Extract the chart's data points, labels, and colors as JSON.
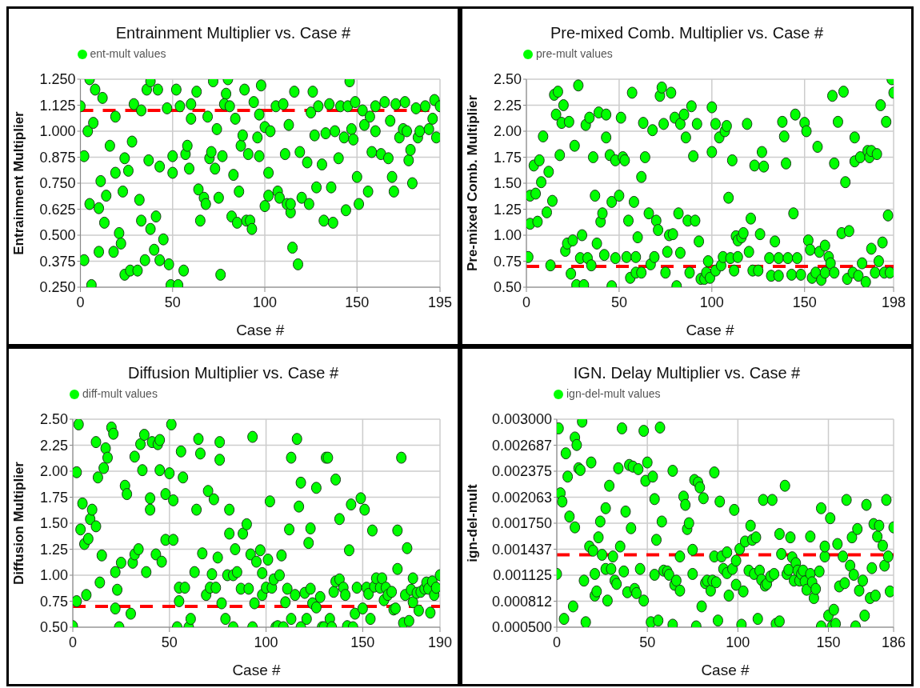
{
  "chart_data": [
    {
      "type": "scatter",
      "title": "Entrainment Multiplier vs. Case #",
      "xlabel": "Case #",
      "ylabel": "Entrainment  Multiplier",
      "xlim": [
        0,
        195
      ],
      "xticks": [
        0,
        50,
        100,
        150,
        195
      ],
      "ylim": [
        0.25,
        1.25
      ],
      "yticks": [
        {
          "value": 0.25,
          "label": "0.250"
        },
        0.375,
        {
          "value": 0.5,
          "label": "0.500"
        },
        0.625,
        {
          "value": 0.75,
          "label": "0.750"
        },
        0.875,
        {
          "value": 1,
          "label": "1.000"
        },
        1.125,
        {
          "value": 1.25,
          "label": "1.250"
        }
      ],
      "grid": true,
      "legend": "top left",
      "marker": "circle",
      "ref_lines": [
        {
          "axis": "y",
          "value": 1.1,
          "color": "#ff0000",
          "line_style": "dashed"
        }
      ],
      "x": [
        0,
        5,
        8,
        12,
        4,
        7,
        2,
        16,
        19,
        5,
        11,
        14,
        10,
        2,
        6,
        10,
        13,
        19,
        23,
        24,
        26,
        21,
        22,
        18,
        24,
        27,
        31,
        28,
        29,
        33,
        32,
        33,
        35,
        36,
        38,
        42,
        37,
        38,
        40,
        41,
        43,
        43,
        45,
        47,
        48,
        49,
        53,
        50,
        50,
        52,
        54,
        56,
        57,
        58,
        59,
        60,
        60,
        63,
        64,
        67,
        68,
        65,
        69,
        70,
        71,
        73,
        72,
        74,
        76,
        75,
        77,
        79,
        80,
        78,
        81,
        84,
        83,
        82,
        85,
        86,
        87,
        88,
        89,
        90,
        92,
        93,
        91,
        94,
        96,
        97,
        98,
        97,
        100,
        100,
        102,
        102,
        103,
        106,
        107,
        108,
        110,
        111,
        112,
        113,
        114,
        114,
        115,
        116,
        118,
        119,
        120,
        123,
        124,
        125,
        126,
        127,
        128,
        129,
        131,
        132,
        133,
        135,
        136,
        137,
        138,
        140,
        141,
        143,
        144,
        146,
        145,
        147,
        148,
        149,
        150,
        151,
        153,
        154,
        156,
        157,
        158,
        160,
        160,
        163,
        165,
        167,
        168,
        169,
        170,
        171,
        173,
        175,
        176,
        177,
        178,
        179,
        180,
        182,
        183,
        184,
        187,
        189,
        191,
        192,
        193,
        195
      ],
      "series": [
        {
          "name": "ent-mult values",
          "color": "#00ff00",
          "values": [
            1.12,
            1.25,
            1.2,
            1.16,
            1.0,
            1.04,
            0.88,
            0.93,
            1.07,
            0.65,
            0.76,
            0.69,
            0.63,
            0.38,
            0.26,
            0.42,
            0.56,
            0.8,
            0.71,
            0.87,
            0.81,
            0.51,
            0.46,
            0.42,
            0.31,
            0.33,
            0.33,
            0.95,
            1.13,
            1.1,
            0.67,
            0.57,
            0.38,
            1.2,
            1.24,
            1.2,
            0.86,
            0.53,
            0.43,
            0.59,
            0.38,
            0.83,
            0.48,
            1.11,
            0.36,
            0.26,
            0.26,
            0.88,
            0.8,
            1.2,
            1.12,
            0.33,
            0.89,
            0.93,
            0.82,
            1.06,
            1.13,
            1.19,
            0.72,
            0.68,
            0.65,
            0.57,
            1.07,
            0.87,
            0.9,
            0.82,
            1.24,
            1.01,
            0.31,
            0.68,
            0.88,
            1.18,
            1.25,
            1.13,
            1.12,
            1.06,
            0.79,
            0.59,
            0.56,
            0.71,
            0.93,
            0.98,
            1.2,
            0.57,
            0.57,
            0.53,
            0.89,
            1.14,
            0.97,
            0.88,
            1.22,
            1.08,
            1.02,
            0.64,
            0.8,
            0.69,
            1.0,
            1.12,
            0.71,
            0.68,
            1.13,
            0.89,
            0.65,
            1.03,
            0.61,
            0.65,
            0.44,
            1.19,
            0.36,
            0.9,
            0.68,
            0.85,
            0.65,
            1.09,
            1.19,
            0.98,
            0.73,
            1.12,
            0.84,
            0.57,
            0.99,
            1.13,
            0.73,
            0.56,
            1.0,
            0.87,
            1.12,
            0.97,
            0.62,
            1.24,
            1.12,
            1.01,
            0.96,
            1.14,
            0.78,
            0.65,
            1.1,
            1.03,
            0.71,
            1.07,
            0.9,
            1.0,
            1.12,
            0.89,
            1.14,
            0.87,
            1.05,
            0.78,
            0.71,
            1.13,
            0.97,
            1.01,
            1.14,
            1.0,
            0.86,
            0.91,
            0.75,
            1.11,
            0.97,
            1.0,
            1.12,
            1.01,
            1.06,
            1.15,
            0.97,
            1.12
          ]
        }
      ]
    },
    {
      "type": "scatter",
      "title": "Pre-mixed Comb. Multiplier vs. Case #",
      "xlabel": "Case #",
      "ylabel": "Pre-mixed Comb. Multiplier",
      "xlim": [
        0,
        198
      ],
      "xticks": [
        0,
        50,
        100,
        150,
        198
      ],
      "ylim": [
        0.5,
        2.5
      ],
      "yticks": [
        {
          "value": 0.5,
          "label": "0.50"
        },
        0.75,
        {
          "value": 1,
          "label": "1.00"
        },
        1.25,
        {
          "value": 1.5,
          "label": "1.50"
        },
        1.75,
        {
          "value": 2,
          "label": "2.00"
        },
        2.25,
        {
          "value": 2.5,
          "label": "2.50"
        }
      ],
      "grid": true,
      "legend": "top left",
      "marker": "circle",
      "ref_lines": [
        {
          "axis": "y",
          "value": 0.7,
          "color": "#ff0000",
          "line_style": "dashed"
        }
      ],
      "x": [
        1,
        2,
        2,
        4,
        5,
        6,
        7,
        8,
        9,
        11,
        12,
        13,
        14,
        15,
        17,
        16,
        18,
        19,
        20,
        21,
        22,
        23,
        24,
        25,
        26,
        27,
        28,
        29,
        30,
        31,
        32,
        33,
        34,
        35,
        36,
        37,
        38,
        39,
        40,
        41,
        42,
        43,
        43,
        45,
        46,
        46,
        48,
        48,
        50,
        51,
        52,
        53,
        54,
        55,
        56,
        57,
        58,
        59,
        59,
        60,
        62,
        62,
        63,
        64,
        66,
        67,
        68,
        69,
        70,
        71,
        72,
        73,
        74,
        75,
        76,
        77,
        78,
        79,
        80,
        81,
        82,
        83,
        83,
        85,
        86,
        87,
        88,
        89,
        90,
        91,
        92,
        93,
        94,
        96,
        97,
        98,
        99,
        100,
        100,
        102,
        102,
        104,
        105,
        106,
        107,
        108,
        109,
        110,
        111,
        112,
        113,
        114,
        114,
        116,
        117,
        119,
        120,
        121,
        122,
        123,
        125,
        126,
        127,
        128,
        131,
        132,
        134,
        136,
        136,
        138,
        139,
        140,
        141,
        143,
        144,
        145,
        146,
        148,
        150,
        151,
        152,
        153,
        154,
        156,
        157,
        158,
        159,
        161,
        161,
        163,
        164,
        165,
        166,
        166,
        168,
        170,
        171,
        172,
        173,
        174,
        176,
        177,
        177,
        179,
        180,
        181,
        183,
        184,
        185,
        186,
        186,
        188,
        189,
        190,
        191,
        192,
        193,
        194,
        195,
        196,
        197,
        198
      ],
      "series": [
        {
          "name": "pre-mult values",
          "color": "#00ff00",
          "values": [
            0.79,
            1.38,
            1.11,
            1.67,
            1.4,
            1.13,
            1.72,
            1.51,
            1.95,
            1.22,
            1.61,
            0.71,
            1.33,
            2.35,
            2.38,
            2.16,
            1.77,
            2.08,
            2.25,
            0.85,
            0.92,
            2.09,
            0.63,
            0.95,
            1.86,
            0.52,
            2.44,
            0.78,
            1.0,
            0.52,
            2.06,
            0.78,
            2.13,
            0.71,
            1.75,
            1.38,
            0.92,
            2.18,
            1.13,
            1.21,
            0.81,
            2.16,
            1.94,
            1.77,
            1.32,
            0.51,
            1.72,
            0.78,
            1.38,
            2.13,
            1.75,
            1.72,
            0.79,
            1.14,
            0.59,
            2.37,
            1.32,
            0.64,
            0.79,
            0.98,
            0.64,
            1.56,
            2.08,
            1.75,
            1.21,
            0.72,
            2.01,
            0.79,
            1.14,
            1.05,
            2.34,
            2.42,
            2.07,
            0.64,
            0.84,
            1.0,
            2.37,
            1.01,
            2.13,
            0.51,
            1.21,
            0.83,
            2.07,
            2.16,
            1.94,
            1.14,
            0.64,
            2.24,
            1.76,
            1.14,
            2.07,
            0.94,
            0.58,
            0.58,
            0.64,
            0.75,
            0.59,
            1.8,
            2.23,
            2.07,
            0.66,
            1.94,
            0.71,
            0.79,
            2.0,
            2.05,
            1.36,
            0.78,
            1.72,
            0.66,
            0.99,
            0.79,
            0.95,
            0.98,
            1.02,
            2.07,
            0.84,
            1.16,
            0.66,
            1.67,
            0.66,
            1.01,
            1.8,
            1.66,
            0.78,
            0.61,
            0.94,
            0.78,
            0.61,
            2.09,
            1.95,
            1.69,
            0.78,
            0.62,
            1.21,
            2.16,
            0.78,
            0.62,
            2.08,
            2.0,
            0.95,
            0.86,
            0.59,
            0.64,
            1.85,
            0.84,
            0.57,
            0.9,
            0.64,
            0.79,
            0.73,
            2.34,
            1.69,
            0.64,
            2.09,
            1.02,
            2.38,
            1.51,
            0.58,
            1.04,
            0.64,
            1.94,
            1.71,
            0.61,
            1.75,
            0.73,
            0.55,
            1.81,
            1.75,
            1.81,
            0.87,
            0.64,
            1.78,
            0.75,
            2.25,
            0.93,
            0.64,
            2.09,
            1.19,
            0.64,
            2.5,
            2.37
          ]
        }
      ]
    },
    {
      "type": "scatter",
      "title": "Diffusion Multiplier vs. Case #",
      "xlabel": "Case #",
      "ylabel": "Diffusion Multiplier",
      "xlim": [
        0,
        190
      ],
      "xticks": [
        0,
        50,
        100,
        150,
        190
      ],
      "ylim": [
        0.5,
        2.5
      ],
      "yticks": [
        {
          "value": 0.5,
          "label": "0.50"
        },
        0.75,
        {
          "value": 1,
          "label": "1.00"
        },
        1.25,
        {
          "value": 1.5,
          "label": "1.50"
        },
        1.75,
        {
          "value": 2,
          "label": "2.00"
        },
        2.25,
        {
          "value": 2.5,
          "label": "2.50"
        }
      ],
      "grid": true,
      "legend": "top left",
      "marker": "circle",
      "ref_lines": [
        {
          "axis": "y",
          "value": 0.7,
          "color": "#ff0000",
          "line_style": "dashed"
        }
      ],
      "x": [
        0,
        2,
        2,
        3,
        4,
        5,
        6,
        7,
        8,
        9,
        10,
        12,
        12,
        13,
        14,
        15,
        16,
        17,
        18,
        20,
        21,
        22,
        22,
        23,
        24,
        25,
        27,
        28,
        30,
        31,
        32,
        32,
        34,
        35,
        36,
        37,
        38,
        40,
        40,
        41,
        43,
        44,
        45,
        45,
        46,
        48,
        48,
        50,
        51,
        52,
        52,
        54,
        55,
        55,
        56,
        57,
        58,
        60,
        61,
        63,
        64,
        65,
        66,
        67,
        69,
        70,
        71,
        72,
        73,
        74,
        75,
        76,
        76,
        77,
        79,
        80,
        81,
        81,
        83,
        83,
        84,
        85,
        87,
        88,
        90,
        91,
        92,
        93,
        93,
        94,
        95,
        97,
        98,
        98,
        100,
        101,
        102,
        103,
        104,
        105,
        106,
        107,
        108,
        109,
        110,
        111,
        112,
        113,
        113,
        115,
        116,
        117,
        118,
        118,
        120,
        121,
        122,
        123,
        123,
        124,
        126,
        126,
        128,
        129,
        130,
        131,
        132,
        133,
        134,
        135,
        136,
        136,
        138,
        138,
        140,
        141,
        142,
        143,
        144,
        145,
        146,
        147,
        149,
        150,
        151,
        152,
        153,
        154,
        155,
        156,
        157,
        159,
        160,
        161,
        162,
        163,
        165,
        166,
        167,
        168,
        168,
        170,
        171,
        172,
        173,
        174,
        175,
        176,
        176,
        178,
        179,
        180,
        182,
        183,
        184,
        185,
        186,
        187,
        188,
        190
      ],
      "series": [
        {
          "name": "diff-mult values",
          "color": "#00ff00",
          "values": [
            0.51,
            1.99,
            0.75,
            2.45,
            1.44,
            1.69,
            1.3,
            0.81,
            1.35,
            1.54,
            1.63,
            1.47,
            2.28,
            1.94,
            0.93,
            1.19,
            2.03,
            2.22,
            2.13,
            2.42,
            2.36,
            0.68,
            1.03,
            0.86,
            0.5,
            1.12,
            1.86,
            1.78,
            0.63,
            1.12,
            1.2,
            2.14,
            1.25,
            2.26,
            2.01,
            2.35,
            1.03,
            1.74,
            1.63,
            2.28,
            1.2,
            2.26,
            2.3,
            2.01,
            1.13,
            1.78,
            1.34,
            1.98,
            2.45,
            1.34,
            1.72,
            0.5,
            0.88,
            0.75,
            2.19,
            1.94,
            0.88,
            0.5,
            0.58,
            1.03,
            1.63,
            2.31,
            2.17,
            1.21,
            0.81,
            1.81,
            0.88,
            1.01,
            1.73,
            0.88,
            1.17,
            2.28,
            2.11,
            0.73,
            0.58,
            1.0,
            1.4,
            1.63,
            0.5,
            1.0,
            1.25,
            1.03,
            0.87,
            1.4,
            1.49,
            0.87,
            1.2,
            0.5,
            2.33,
            0.73,
            1.13,
            1.24,
            0.81,
            1.02,
            0.88,
            1.15,
            1.71,
            0.88,
            0.96,
            0.5,
            0.51,
            1.0,
            1.19,
            0.5,
            0.74,
            0.87,
            1.44,
            0.58,
            2.13,
            0.81,
            2.31,
            1.66,
            0.5,
            1.89,
            0.83,
            0.58,
            1.31,
            0.87,
            1.45,
            0.73,
            0.69,
            1.84,
            0.79,
            0.5,
            0.5,
            2.13,
            2.13,
            0.58,
            0.5,
            0.84,
            1.92,
            0.94,
            1.54,
            0.96,
            0.88,
            0.81,
            0.51,
            1.24,
            1.68,
            0.5,
            0.63,
            0.88,
            1.74,
            0.68,
            1.63,
            0.88,
            0.82,
            0.58,
            1.43,
            0.89,
            0.97,
            0.88,
            0.97,
            0.76,
            0.88,
            0.81,
            0.84,
            0.67,
            0.68,
            1.06,
            1.43,
            2.13,
            0.54,
            0.81,
            1.26,
            0.56,
            0.86,
            0.74,
            0.97,
            0.83,
            0.66,
            0.84,
            0.87,
            0.93,
            0.87,
            0.64,
            0.94,
            0.81,
            0.88,
            1.0
          ]
        }
      ]
    },
    {
      "type": "scatter",
      "title": "IGN. Delay Multiplier vs. Case #",
      "xlabel": "Case #",
      "ylabel": "ign-del-mult",
      "xlim": [
        0,
        186
      ],
      "xticks": [
        0,
        50,
        100,
        150,
        186
      ],
      "ylim": [
        0.0005,
        0.003
      ],
      "yticks": [
        {
          "value": 0.0005,
          "label": "0.000500"
        },
        {
          "value": 0.0008125,
          "label": "0.000812"
        },
        0.001125,
        {
          "value": 0.0014375,
          "label": "0.001437"
        },
        {
          "value": 0.00175,
          "label": "0.001750"
        },
        {
          "value": 0.0020625,
          "label": "0.002063"
        },
        0.002375,
        {
          "value": 0.0026875,
          "label": "0.002687"
        },
        {
          "value": 0.003,
          "label": "0.003000"
        }
      ],
      "grid": true,
      "legend": "top left",
      "marker": "circle",
      "ref_lines": [
        {
          "axis": "y",
          "value": 0.00137,
          "color": "#ff0000",
          "line_style": "dashed"
        }
      ],
      "x": [
        1,
        0,
        2,
        3,
        4,
        5,
        6,
        7,
        9,
        10,
        10,
        11,
        12,
        13,
        14,
        15,
        16,
        18,
        19,
        20,
        21,
        21,
        22,
        23,
        24,
        25,
        27,
        27,
        28,
        29,
        30,
        31,
        32,
        33,
        34,
        35,
        36,
        37,
        38,
        39,
        40,
        41,
        42,
        43,
        44,
        45,
        46,
        48,
        48,
        49,
        50,
        52,
        53,
        54,
        54,
        55,
        56,
        57,
        58,
        59,
        61,
        62,
        64,
        64,
        65,
        66,
        68,
        68,
        70,
        71,
        72,
        73,
        75,
        75,
        76,
        77,
        78,
        79,
        80,
        81,
        82,
        83,
        85,
        86,
        87,
        87,
        88,
        89,
        90,
        91,
        92,
        94,
        94,
        95,
        97,
        98,
        99,
        99,
        101,
        102,
        103,
        104,
        106,
        107,
        108,
        109,
        110,
        111,
        112,
        113,
        114,
        115,
        116,
        118,
        119,
        120,
        121,
        123,
        123,
        124,
        126,
        127,
        128,
        129,
        130,
        131,
        132,
        133,
        134,
        135,
        136,
        137,
        138,
        140,
        140,
        141,
        142,
        143,
        145,
        146,
        146,
        148,
        148,
        150,
        151,
        152,
        153,
        154,
        155,
        156,
        158,
        159,
        160,
        162,
        163,
        164,
        165,
        166,
        167,
        169,
        170,
        171,
        173,
        174,
        175,
        176,
        177,
        178,
        180,
        181,
        182,
        183,
        184,
        186
      ],
      "series": [
        {
          "name": "ign-del-mult values",
          "color": "#00ff00",
          "values": [
            0.00289,
            0.00114,
            0.00211,
            0.00201,
            0.0006,
            0.00259,
            0.00231,
            0.00183,
            0.00075,
            0.00278,
            0.0017,
            0.00269,
            0.00241,
            0.00239,
            0.00297,
            0.00106,
            0.00056,
            0.00147,
            0.00248,
            0.00142,
            0.00114,
            0.00088,
            0.00093,
            0.00158,
            0.00177,
            0.00137,
            0.0012,
            0.00193,
            0.00082,
            0.0022,
            0.0012,
            0.00135,
            0.00106,
            0.00102,
            0.00241,
            0.00147,
            0.00289,
            0.00117,
            0.00189,
            0.00092,
            0.00245,
            0.00169,
            0.00243,
            0.00096,
            0.00091,
            0.0024,
            0.0012,
            0.00082,
            0.00286,
            0.00226,
            0.00248,
            0.00056,
            0.00231,
            0.00113,
            0.00204,
            0.00155,
            0.00058,
            0.0029,
            0.00177,
            0.00118,
            0.00117,
            0.00113,
            0.00053,
            0.00238,
            0.00101,
            0.00106,
            0.00135,
            0.00094,
            0.00207,
            0.00197,
            0.00168,
            0.00175,
            0.00143,
            0.00114,
            0.00227,
            0.00051,
            0.00224,
            0.00218,
            0.00075,
            0.00205,
            0.00103,
            0.00106,
            0.00094,
            0.00106,
            0.00236,
            0.00135,
            0.00104,
            0.00058,
            0.00201,
            0.00135,
            0.0012,
            0.00115,
            0.0014,
            0.00088,
            0.0012,
            0.00191,
            0.0013,
            0.00101,
            0.00144,
            0.00053,
            0.00093,
            0.00153,
            0.00118,
            0.00172,
            0.00155,
            0.00114,
            0.00158,
            0.0006,
            0.00118,
            0.00107,
            0.00203,
            0.001,
            0.00102,
            0.00111,
            0.00203,
            0.00114,
            0.00054,
            0.00162,
            0.00057,
            0.00138,
            0.0022,
            0.00114,
            0.00119,
            0.00158,
            0.00134,
            0.00106,
            0.00127,
            0.00118,
            0.00106,
            0.00114,
            0.00118,
            0.00105,
            0.00095,
            0.00159,
            0.00114,
            0.00104,
            0.00085,
            0.00096,
            0.00117,
            0.00051,
            0.00193,
            0.00135,
            0.00147,
            0.00064,
            0.00181,
            0.00051,
            0.00071,
            0.00054,
            0.0015,
            0.00099,
            0.00135,
            0.00103,
            0.00203,
            0.00124,
            0.00158,
            0.00113,
            0.00051,
            0.00168,
            0.00094,
            0.00106,
            0.00064,
            0.00197,
            0.00085,
            0.00121,
            0.00174,
            0.00088,
            0.00159,
            0.00172,
            0.00148,
            0.00124,
            0.00203,
            0.00135,
            0.00093,
            0.0017
          ]
        }
      ]
    }
  ]
}
